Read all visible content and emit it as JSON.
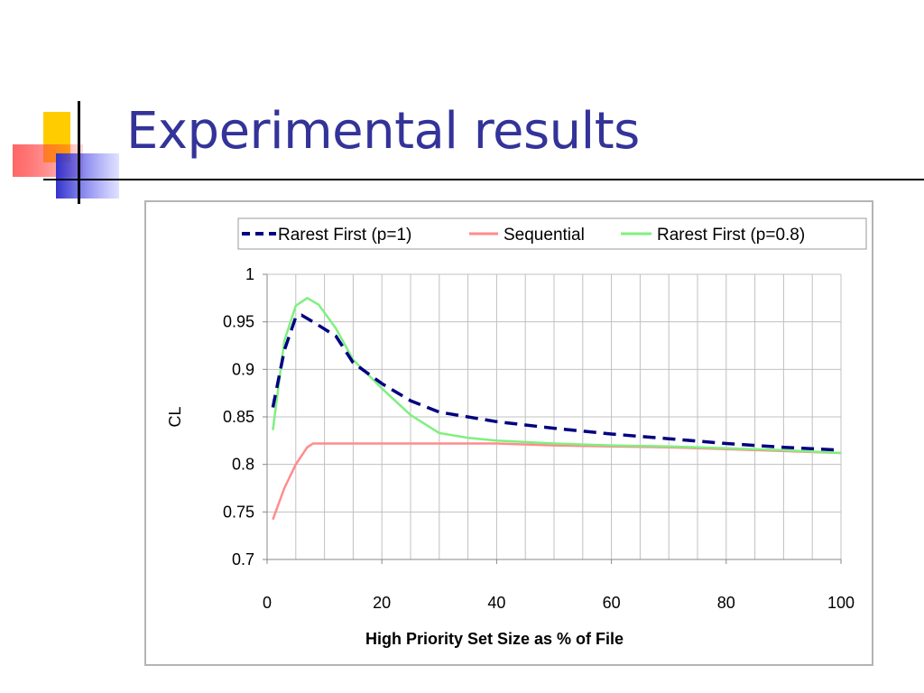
{
  "slide": {
    "title": "Experimental results"
  },
  "colors": {
    "title": "#333399",
    "rarest_first_p1": "#000080",
    "sequential": "#ff8c8c",
    "rarest_first_p08": "#7ff07f",
    "grid": "#c0c0c0"
  },
  "chart_data": {
    "type": "line",
    "xlabel": "High Priority Set Size as % of File",
    "ylabel": "CL",
    "xlim": [
      0,
      100
    ],
    "ylim": [
      0.7,
      1
    ],
    "xticks": [
      0,
      20,
      40,
      60,
      80,
      100
    ],
    "xtick_labels": [
      "0",
      "20",
      "40",
      "60",
      "80",
      "100"
    ],
    "yticks": [
      0.7,
      0.75,
      0.8,
      0.85,
      0.9,
      0.95,
      1
    ],
    "ytick_labels": [
      "0.7",
      "0.75",
      "0.8",
      "0.85",
      "0.9",
      "0.95",
      "1"
    ],
    "grid": true,
    "legend_position": "top",
    "series": [
      {
        "name": "Rarest First (p=1)",
        "style": "dashed",
        "color": "#000080",
        "x": [
          1,
          3,
          5,
          6,
          8,
          12,
          15,
          20,
          25,
          30,
          40,
          50,
          60,
          70,
          80,
          90,
          100
        ],
        "y": [
          0.86,
          0.92,
          0.955,
          0.957,
          0.95,
          0.935,
          0.907,
          0.885,
          0.867,
          0.855,
          0.845,
          0.838,
          0.832,
          0.827,
          0.822,
          0.818,
          0.815
        ]
      },
      {
        "name": "Sequential",
        "style": "solid",
        "color": "#ff8c8c",
        "x": [
          1,
          3,
          5,
          7,
          8,
          10,
          20,
          30,
          40,
          50,
          60,
          70,
          80,
          90,
          100
        ],
        "y": [
          0.742,
          0.775,
          0.8,
          0.818,
          0.822,
          0.822,
          0.822,
          0.822,
          0.822,
          0.82,
          0.819,
          0.818,
          0.816,
          0.814,
          0.812
        ]
      },
      {
        "name": "Rarest First (p=0.8)",
        "style": "solid",
        "color": "#7ff07f",
        "x": [
          1,
          3,
          5,
          7,
          9,
          12,
          15,
          20,
          25,
          30,
          35,
          40,
          50,
          60,
          70,
          80,
          90,
          100
        ],
        "y": [
          0.836,
          0.93,
          0.967,
          0.975,
          0.968,
          0.943,
          0.91,
          0.88,
          0.852,
          0.833,
          0.828,
          0.825,
          0.822,
          0.82,
          0.819,
          0.817,
          0.815,
          0.812
        ]
      }
    ]
  }
}
